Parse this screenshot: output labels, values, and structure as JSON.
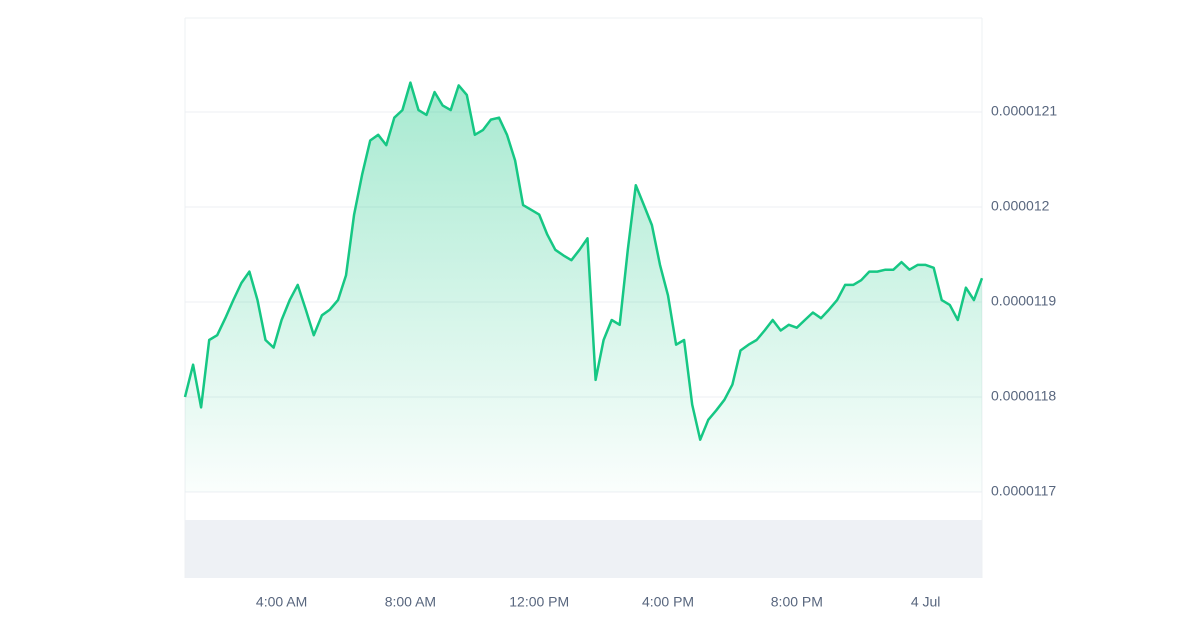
{
  "chart_data": {
    "type": "line",
    "series": [
      {
        "color": "#16c784",
        "values": [
          1.18e-05,
          1.1834e-05,
          1.1789e-05,
          1.186e-05,
          1.1865e-05,
          1.1883e-05,
          1.1902e-05,
          1.192e-05,
          1.1932e-05,
          1.1902e-05,
          1.186e-05,
          1.1852e-05,
          1.1881e-05,
          1.1902e-05,
          1.1918e-05,
          1.1892e-05,
          1.1865e-05,
          1.1886e-05,
          1.1892e-05,
          1.1902e-05,
          1.1928e-05,
          1.1992e-05,
          1.2034e-05,
          1.207e-05,
          1.2076e-05,
          1.2065e-05,
          1.2094e-05,
          1.2102e-05,
          1.2131e-05,
          1.2102e-05,
          1.2097e-05,
          1.2121e-05,
          1.2107e-05,
          1.2102e-05,
          1.2128e-05,
          1.2118e-05,
          1.2076e-05,
          1.2081e-05,
          1.2092e-05,
          1.2094e-05,
          1.2076e-05,
          1.2049e-05,
          1.2002e-05,
          1.1997e-05,
          1.1992e-05,
          1.1971e-05,
          1.1955e-05,
          1.1949e-05,
          1.1944e-05,
          1.1955e-05,
          1.1967e-05,
          1.1818e-05,
          1.186e-05,
          1.1881e-05,
          1.1876e-05,
          1.1955e-05,
          1.2023e-05,
          1.2002e-05,
          1.1981e-05,
          1.1939e-05,
          1.1907e-05,
          1.1855e-05,
          1.186e-05,
          1.1792e-05,
          1.1755e-05,
          1.1776e-05,
          1.1786e-05,
          1.1797e-05,
          1.1813e-05,
          1.1849e-05,
          1.1855e-05,
          1.186e-05,
          1.187e-05,
          1.1881e-05,
          1.187e-05,
          1.1876e-05,
          1.1873e-05,
          1.1881e-05,
          1.1889e-05,
          1.1883e-05,
          1.1892e-05,
          1.1902e-05,
          1.1918e-05,
          1.1918e-05,
          1.1923e-05,
          1.1932e-05,
          1.1932e-05,
          1.1934e-05,
          1.1934e-05,
          1.1942e-05,
          1.1934e-05,
          1.1939e-05,
          1.1939e-05,
          1.1936e-05,
          1.1902e-05,
          1.1897e-05,
          1.1881e-05,
          1.1915e-05,
          1.1902e-05,
          1.1925e-05
        ]
      }
    ],
    "ylim": [
      1.17e-05,
      1.22e-05
    ],
    "yticks": [
      1.17e-05,
      1.18e-05,
      1.19e-05,
      1.2e-05,
      1.21e-05
    ],
    "xticks": [
      {
        "value": 12,
        "label": "4:00 AM"
      },
      {
        "value": 28,
        "label": "8:00 AM"
      },
      {
        "value": 44,
        "label": "12:00 PM"
      },
      {
        "value": 60,
        "label": "4:00 PM"
      },
      {
        "value": 76,
        "label": "8:00 PM"
      },
      {
        "value": 92,
        "label": "4 Jul"
      }
    ],
    "grid": true
  }
}
